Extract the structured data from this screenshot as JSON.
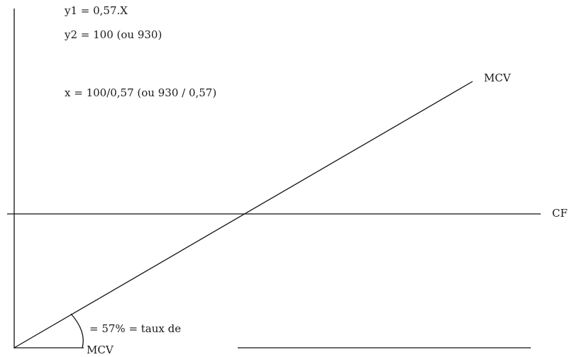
{
  "formulas": {
    "y1": "y1 = 0,57.X",
    "y2": "y2 = 100 (ou 930)",
    "x": "x = 100/0,57 (ou 930 / 0,57)"
  },
  "labels": {
    "mcv_line": "MCV",
    "cf_line": "CF",
    "angle_text": "= 57% = taux de",
    "angle_text_2": "MCV"
  }
}
